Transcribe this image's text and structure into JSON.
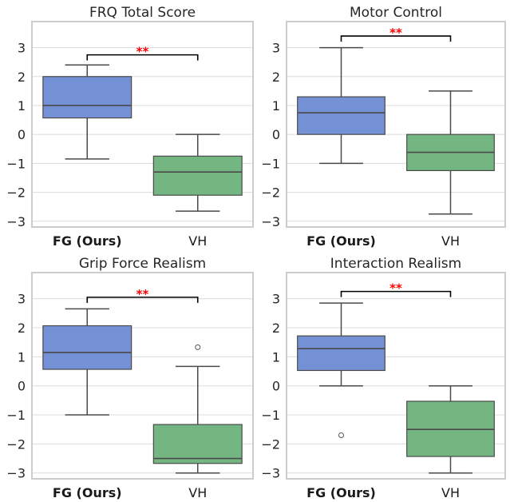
{
  "chart_data": [
    {
      "type": "box",
      "title": "FRQ Total Score",
      "categories": [
        "FG (Ours)",
        "VH"
      ],
      "bold_category": "FG (Ours)",
      "ylim": [
        -3.2,
        3.9
      ],
      "yticks": [
        -3,
        -2,
        -1,
        0,
        1,
        2,
        3
      ],
      "grid": true,
      "boxes": [
        {
          "category": "FG (Ours)",
          "color": "#7591d5",
          "whisker_low": -0.85,
          "q1": 0.57,
          "median": 1.0,
          "q3": 2.0,
          "whisker_high": 2.4,
          "outliers": []
        },
        {
          "category": "VH",
          "color": "#74b681",
          "whisker_low": -2.65,
          "q1": -2.1,
          "median": -1.3,
          "q3": -0.75,
          "whisker_high": 0.0,
          "outliers": []
        }
      ],
      "significance": {
        "label": "**",
        "y": 2.75
      }
    },
    {
      "type": "box",
      "title": "Motor Control",
      "categories": [
        "FG (Ours)",
        "VH"
      ],
      "bold_category": "FG (Ours)",
      "ylim": [
        -3.2,
        3.9
      ],
      "yticks": [
        -3,
        -2,
        -1,
        0,
        1,
        2,
        3
      ],
      "grid": true,
      "boxes": [
        {
          "category": "FG (Ours)",
          "color": "#7591d5",
          "whisker_low": -1.0,
          "q1": 0.0,
          "median": 0.75,
          "q3": 1.3,
          "whisker_high": 3.0,
          "outliers": []
        },
        {
          "category": "VH",
          "color": "#74b681",
          "whisker_low": -2.75,
          "q1": -1.25,
          "median": -0.62,
          "q3": 0.0,
          "whisker_high": 1.5,
          "outliers": []
        }
      ],
      "significance": {
        "label": "**",
        "y": 3.4
      }
    },
    {
      "type": "box",
      "title": "Grip Force Realism",
      "categories": [
        "FG (Ours)",
        "VH"
      ],
      "bold_category": "FG (Ours)",
      "ylim": [
        -3.2,
        3.9
      ],
      "yticks": [
        -3,
        -2,
        -1,
        0,
        1,
        2,
        3
      ],
      "grid": true,
      "boxes": [
        {
          "category": "FG (Ours)",
          "color": "#7591d5",
          "whisker_low": -1.0,
          "q1": 0.57,
          "median": 1.15,
          "q3": 2.07,
          "whisker_high": 2.65,
          "outliers": []
        },
        {
          "category": "VH",
          "color": "#74b681",
          "whisker_low": -3.0,
          "q1": -2.67,
          "median": -2.5,
          "q3": -1.33,
          "whisker_high": 0.67,
          "outliers": [
            1.33
          ]
        }
      ],
      "significance": {
        "label": "**",
        "y": 3.05
      }
    },
    {
      "type": "box",
      "title": "Interaction Realism",
      "categories": [
        "FG (Ours)",
        "VH"
      ],
      "bold_category": "FG (Ours)",
      "ylim": [
        -3.2,
        3.9
      ],
      "yticks": [
        -3,
        -2,
        -1,
        0,
        1,
        2,
        3
      ],
      "grid": true,
      "boxes": [
        {
          "category": "FG (Ours)",
          "color": "#7591d5",
          "whisker_low": 0.0,
          "q1": 0.53,
          "median": 1.28,
          "q3": 1.72,
          "whisker_high": 2.85,
          "outliers": [
            -1.7
          ]
        },
        {
          "category": "VH",
          "color": "#74b681",
          "whisker_low": -3.0,
          "q1": -2.43,
          "median": -1.5,
          "q3": -0.53,
          "whisker_high": 0.0,
          "outliers": []
        }
      ],
      "significance": {
        "label": "**",
        "y": 3.25
      }
    }
  ]
}
